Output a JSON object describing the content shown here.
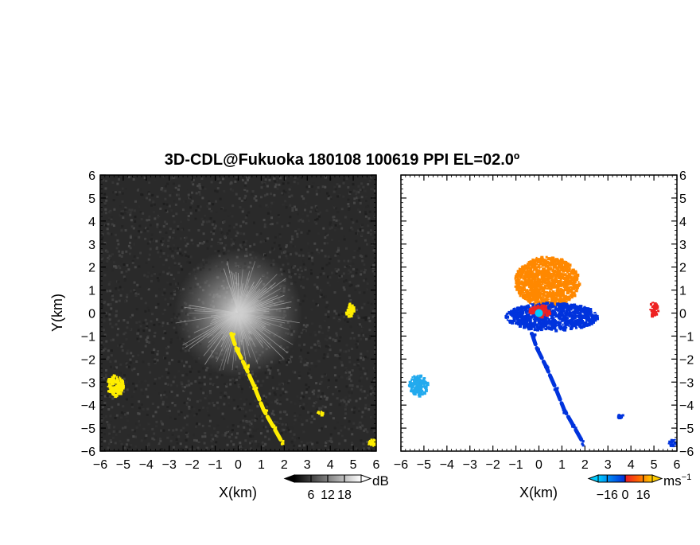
{
  "title": "3D-CDL@Fukuoka 180108 100619 PPI EL=02.0º",
  "colors": {
    "background": "#ffffff",
    "frame": "#000000",
    "panel_left_bg": "#2a2a2a",
    "echo_yellow": "#ffee00",
    "echo_white": "#d8d8d8",
    "vel_light_blue": "#22aaee",
    "vel_blue": "#0033dd",
    "vel_red": "#ee2222",
    "vel_orange": "#ff8800",
    "vel_cyan": "#00ccff"
  },
  "chart_data": [
    {
      "type": "heatmap",
      "name_key": "left_panel",
      "variable": "snr",
      "xlabel": "X(km)",
      "ylabel": "Y(km)",
      "xlim": [
        -6,
        6
      ],
      "ylim": [
        -6,
        6
      ],
      "x_ticks": [
        "−6",
        "−5",
        "−4",
        "−3",
        "−2",
        "−1",
        "0",
        "1",
        "2",
        "3",
        "4",
        "5",
        "6"
      ],
      "y_ticks": [
        "6",
        "5",
        "4",
        "3",
        "2",
        "1",
        "0",
        "−1",
        "−2",
        "−3",
        "−4",
        "−5",
        "−6"
      ],
      "colorbar": {
        "unit": "dB",
        "ticks": [
          "6",
          "12",
          "18"
        ],
        "tick_values": [
          6,
          12,
          18
        ],
        "range": [
          0,
          24
        ]
      },
      "features": [
        {
          "label": "near-radar fan",
          "center": [
            0,
            0
          ],
          "radius_km": 2.8,
          "color": "#cfcfcf"
        },
        {
          "label": "streak",
          "points": [
            [
              -0.3,
              -0.9
            ],
            [
              -0.1,
              -1.5
            ],
            [
              0.3,
              -2.3
            ],
            [
              0.7,
              -3.2
            ],
            [
              1.1,
              -4.2
            ],
            [
              1.5,
              -4.9
            ],
            [
              1.9,
              -5.6
            ]
          ],
          "color": "#ffee00"
        },
        {
          "label": "patch",
          "center": [
            -5.4,
            -3.1
          ],
          "rx": 0.35,
          "ry": 0.45,
          "color": "#ffee00"
        },
        {
          "label": "patch",
          "center": [
            4.8,
            0.2
          ],
          "rx": 0.18,
          "ry": 0.3,
          "color": "#ffee00"
        },
        {
          "label": "patch",
          "center": [
            3.5,
            -4.3
          ],
          "rx": 0.12,
          "ry": 0.08,
          "color": "#ffee00"
        },
        {
          "label": "patch",
          "center": [
            5.8,
            -5.6
          ],
          "rx": 0.2,
          "ry": 0.15,
          "color": "#ffee00"
        }
      ]
    },
    {
      "type": "heatmap",
      "name_key": "right_panel",
      "variable": "radial_velocity",
      "xlabel": "X(km)",
      "xlim": [
        -6,
        6
      ],
      "ylim": [
        -6,
        6
      ],
      "x_ticks": [
        "−6",
        "−5",
        "−4",
        "−3",
        "−2",
        "−1",
        "0",
        "1",
        "2",
        "3",
        "4",
        "5",
        "6"
      ],
      "y_ticks": [
        "6",
        "5",
        "4",
        "3",
        "2",
        "1",
        "0",
        "−1",
        "−2",
        "−3",
        "−4",
        "−5",
        "−6"
      ],
      "colorbar": {
        "unit": "ms",
        "unit_exp": "−1",
        "ticks": [
          "−16",
          "0",
          "16"
        ],
        "tick_values": [
          -16,
          0,
          16
        ],
        "range": [
          -24,
          24
        ]
      },
      "features": [
        {
          "label": "orange plume",
          "center": [
            0.3,
            1.4
          ],
          "rx": 1.4,
          "ry": 1.1,
          "color": "#ff8800"
        },
        {
          "label": "blue cluster",
          "center": [
            0.5,
            -0.1
          ],
          "rx": 2.0,
          "ry": 0.6,
          "color": "#0033dd"
        },
        {
          "label": "red core",
          "center": [
            0,
            0.15
          ],
          "rx": 0.45,
          "ry": 0.25,
          "color": "#ee2222"
        },
        {
          "label": "streak",
          "points": [
            [
              -0.3,
              -0.9
            ],
            [
              -0.1,
              -1.5
            ],
            [
              0.3,
              -2.3
            ],
            [
              0.7,
              -3.2
            ],
            [
              1.1,
              -4.2
            ],
            [
              1.5,
              -4.9
            ],
            [
              1.9,
              -5.6
            ]
          ],
          "color": "#0033dd"
        },
        {
          "label": "patch",
          "center": [
            -5.3,
            -3.1
          ],
          "rx": 0.4,
          "ry": 0.45,
          "color": "#22aaee"
        },
        {
          "label": "patch",
          "center": [
            4.95,
            0.2
          ],
          "rx": 0.2,
          "ry": 0.3,
          "color": "#ee2222"
        },
        {
          "label": "patch",
          "center": [
            3.5,
            -4.4
          ],
          "rx": 0.12,
          "ry": 0.1,
          "color": "#0033dd"
        },
        {
          "label": "patch",
          "center": [
            5.8,
            -5.6
          ],
          "rx": 0.2,
          "ry": 0.15,
          "color": "#0033dd"
        }
      ]
    }
  ]
}
